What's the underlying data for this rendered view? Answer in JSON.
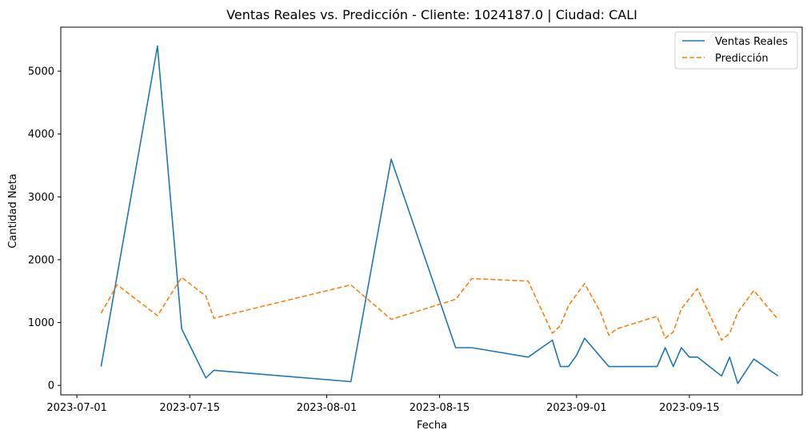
{
  "chart_data": {
    "type": "line",
    "title": "Ventas Reales vs. Predicción - Cliente: 1024187.0 | Ciudad: CALI",
    "xlabel": "Fecha",
    "ylabel": "Cantidad Neta",
    "xlim": [
      "2023-06-29",
      "2023-09-29"
    ],
    "ylim": [
      -150,
      5700
    ],
    "x_ticks": [
      "2023-07-01",
      "2023-07-15",
      "2023-08-01",
      "2023-08-15",
      "2023-09-01",
      "2023-09-15"
    ],
    "y_ticks": [
      0,
      1000,
      2000,
      3000,
      4000,
      5000
    ],
    "grid": false,
    "legend_position": "top-right",
    "series": [
      {
        "name": "Ventas Reales",
        "color": "#1f77b4",
        "style": "solid",
        "points": [
          {
            "x": "2023-07-04",
            "y": 300
          },
          {
            "x": "2023-07-11",
            "y": 5400
          },
          {
            "x": "2023-07-14",
            "y": 900
          },
          {
            "x": "2023-07-17",
            "y": 120
          },
          {
            "x": "2023-07-18",
            "y": 240
          },
          {
            "x": "2023-08-04",
            "y": 60
          },
          {
            "x": "2023-08-09",
            "y": 3600
          },
          {
            "x": "2023-08-17",
            "y": 600
          },
          {
            "x": "2023-08-19",
            "y": 600
          },
          {
            "x": "2023-08-26",
            "y": 450
          },
          {
            "x": "2023-08-29",
            "y": 720
          },
          {
            "x": "2023-08-30",
            "y": 300
          },
          {
            "x": "2023-08-31",
            "y": 300
          },
          {
            "x": "2023-09-01",
            "y": 480
          },
          {
            "x": "2023-09-02",
            "y": 750
          },
          {
            "x": "2023-09-05",
            "y": 300
          },
          {
            "x": "2023-09-11",
            "y": 300
          },
          {
            "x": "2023-09-12",
            "y": 600
          },
          {
            "x": "2023-09-13",
            "y": 300
          },
          {
            "x": "2023-09-14",
            "y": 600
          },
          {
            "x": "2023-09-15",
            "y": 450
          },
          {
            "x": "2023-09-16",
            "y": 450
          },
          {
            "x": "2023-09-19",
            "y": 150
          },
          {
            "x": "2023-09-20",
            "y": 450
          },
          {
            "x": "2023-09-21",
            "y": 30
          },
          {
            "x": "2023-09-23",
            "y": 420
          },
          {
            "x": "2023-09-26",
            "y": 150
          }
        ]
      },
      {
        "name": "Predicción",
        "color": "#ff7f0e",
        "style": "dashed",
        "points": [
          {
            "x": "2023-07-04",
            "y": 1150
          },
          {
            "x": "2023-07-06",
            "y": 1600
          },
          {
            "x": "2023-07-11",
            "y": 1110
          },
          {
            "x": "2023-07-14",
            "y": 1720
          },
          {
            "x": "2023-07-17",
            "y": 1420
          },
          {
            "x": "2023-07-18",
            "y": 1070
          },
          {
            "x": "2023-08-04",
            "y": 1600
          },
          {
            "x": "2023-08-09",
            "y": 1050
          },
          {
            "x": "2023-08-17",
            "y": 1370
          },
          {
            "x": "2023-08-19",
            "y": 1700
          },
          {
            "x": "2023-08-26",
            "y": 1660
          },
          {
            "x": "2023-08-29",
            "y": 830
          },
          {
            "x": "2023-08-30",
            "y": 950
          },
          {
            "x": "2023-08-31",
            "y": 1270
          },
          {
            "x": "2023-09-02",
            "y": 1620
          },
          {
            "x": "2023-09-04",
            "y": 1160
          },
          {
            "x": "2023-09-05",
            "y": 800
          },
          {
            "x": "2023-09-06",
            "y": 900
          },
          {
            "x": "2023-09-11",
            "y": 1100
          },
          {
            "x": "2023-09-12",
            "y": 750
          },
          {
            "x": "2023-09-13",
            "y": 850
          },
          {
            "x": "2023-09-14",
            "y": 1220
          },
          {
            "x": "2023-09-16",
            "y": 1540
          },
          {
            "x": "2023-09-19",
            "y": 720
          },
          {
            "x": "2023-09-20",
            "y": 830
          },
          {
            "x": "2023-09-21",
            "y": 1160
          },
          {
            "x": "2023-09-23",
            "y": 1510
          },
          {
            "x": "2023-09-26",
            "y": 1050
          }
        ]
      }
    ]
  }
}
